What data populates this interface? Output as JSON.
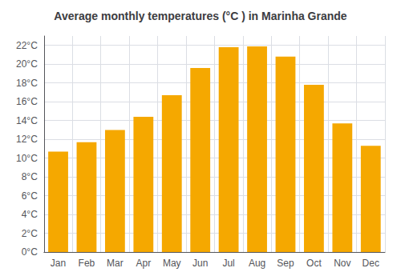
{
  "chart_data": {
    "type": "bar",
    "title": "Average monthly temperatures (°C ) in Marinha Grande",
    "categories": [
      "Jan",
      "Feb",
      "Mar",
      "Apr",
      "May",
      "Jun",
      "Jul",
      "Aug",
      "Sep",
      "Oct",
      "Nov",
      "Dec"
    ],
    "values": [
      10.7,
      11.7,
      13.0,
      14.4,
      16.7,
      19.6,
      21.8,
      21.9,
      20.8,
      17.8,
      13.7,
      11.3
    ],
    "color": "#F5A800",
    "ylim": [
      0,
      23
    ],
    "yticks": [
      {
        "value": 0,
        "label": "0°C"
      },
      {
        "value": 2,
        "label": "2°C"
      },
      {
        "value": 4,
        "label": "4°C"
      },
      {
        "value": 6,
        "label": "6°C"
      },
      {
        "value": 8,
        "label": "8°C"
      },
      {
        "value": 10,
        "label": "10°C"
      },
      {
        "value": 12,
        "label": "12°C"
      },
      {
        "value": 14,
        "label": "14°C"
      },
      {
        "value": 16,
        "label": "16°C"
      },
      {
        "value": 18,
        "label": "18°C"
      },
      {
        "value": 20,
        "label": "20°C"
      },
      {
        "value": 22,
        "label": "22°C"
      }
    ],
    "grid": true
  }
}
